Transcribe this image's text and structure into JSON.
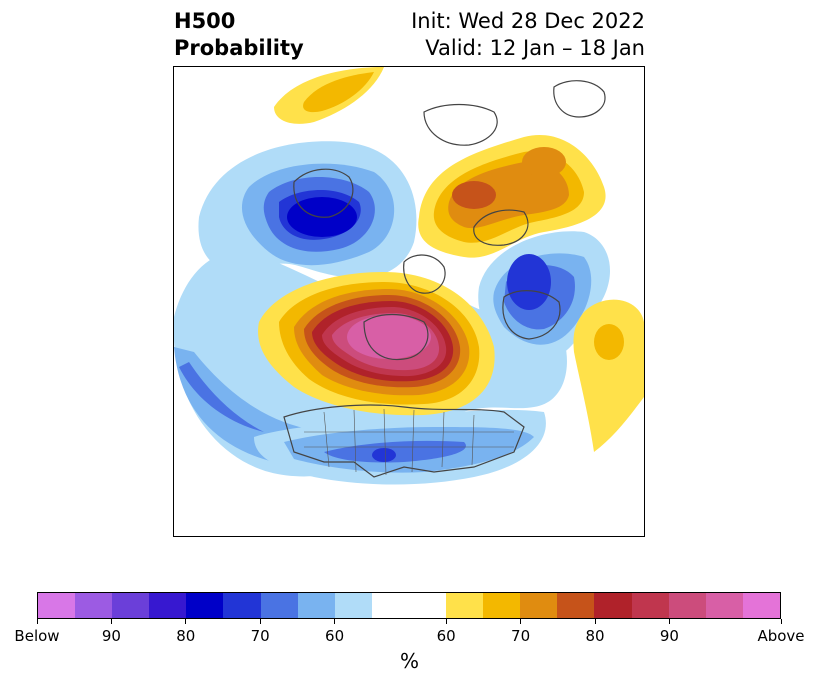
{
  "title": {
    "left_line1": "H500",
    "left_line2": "Probability",
    "right_line1": "Init: Wed 28 Dec 2022",
    "right_line2": "Valid: 12 Jan – 18 Jan"
  },
  "map": {
    "projection": "polar stereographic, North Pole",
    "features": [
      "coastlines",
      "country borders",
      "US state borders"
    ],
    "anomalies": [
      {
        "region": "Greenland / Canadian Arctic",
        "sign": "above",
        "peak_percent": 90
      },
      {
        "region": "Northern Europe / Scandinavia",
        "sign": "above",
        "peak_percent": 80
      },
      {
        "region": "Northern Siberia",
        "sign": "above",
        "peak_percent": 70
      },
      {
        "region": "Central Asia",
        "sign": "above",
        "peak_percent": 70
      },
      {
        "region": "Western Europe / North Atlantic",
        "sign": "below",
        "peak_percent": 80
      },
      {
        "region": "East Siberia / Sea of Okhotsk",
        "sign": "below",
        "peak_percent": 80
      },
      {
        "region": "United States",
        "sign": "below",
        "peak_percent": 80
      },
      {
        "region": "North Pacific / Aleutians",
        "sign": "below",
        "peak_percent": 60
      }
    ]
  },
  "colorbar": {
    "unit": "%",
    "colors": [
      "#d877e7",
      "#9c5be3",
      "#6b3fd9",
      "#3718d0",
      "#0000c8",
      "#2235d6",
      "#4a73e3",
      "#79b3f0",
      "#b0dcf8",
      "#ffffff",
      "#ffe14a",
      "#f3b800",
      "#e08c10",
      "#c6531a",
      "#b0222a",
      "#c0364e",
      "#cc4c7c",
      "#d85fa6",
      "#e473d8"
    ],
    "tick_labels": [
      "Below",
      "90",
      "80",
      "70",
      "60",
      "60",
      "70",
      "80",
      "90",
      "Above"
    ]
  }
}
